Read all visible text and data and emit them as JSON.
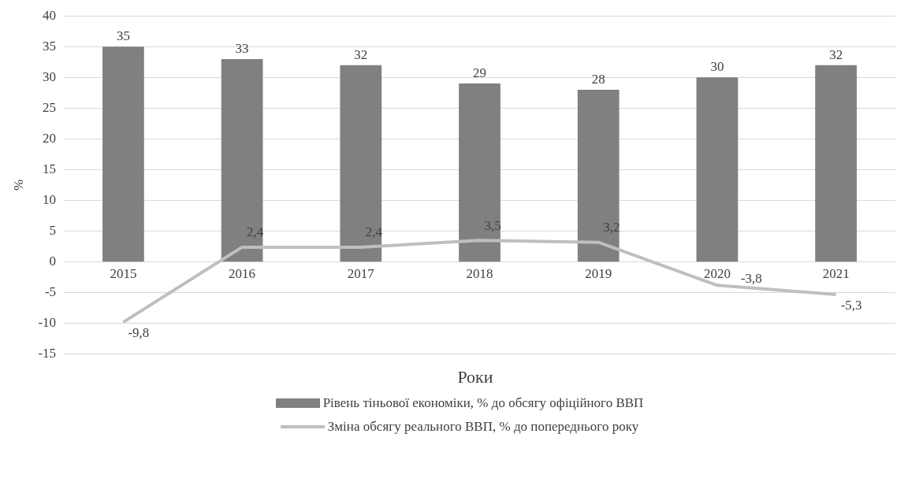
{
  "chart_data": {
    "type": "bar",
    "categories": [
      "2015",
      "2016",
      "2017",
      "2018",
      "2019",
      "2020",
      "2021"
    ],
    "series": [
      {
        "name": "Рівень тіньової економіки, % до обсягу офіційного ВВП",
        "color": "#808080",
        "values": [
          35,
          33,
          32,
          29,
          28,
          30,
          32
        ],
        "value_labels": [
          "35",
          "33",
          "32",
          "29",
          "28",
          "30",
          "32"
        ]
      },
      {
        "name": "Зміна обсягу реального ВВП, % до попереднього року",
        "type": "line",
        "color": "#bfbfbf",
        "values": [
          -9.8,
          2.4,
          2.4,
          3.5,
          3.2,
          -3.8,
          -5.3
        ],
        "value_labels": [
          "-9,8",
          "2,4",
          "2,4",
          "3,5",
          "3,2",
          "-3,8",
          "-5,3"
        ]
      }
    ],
    "xlabel": "Роки",
    "ylabel": "%",
    "ylim": [
      -15,
      40
    ],
    "yticks": [
      -15,
      -10,
      -5,
      0,
      5,
      10,
      15,
      20,
      25,
      30,
      35,
      40
    ],
    "grid": "y",
    "legend": "bottom",
    "marker": "none",
    "line_style": "solid"
  }
}
